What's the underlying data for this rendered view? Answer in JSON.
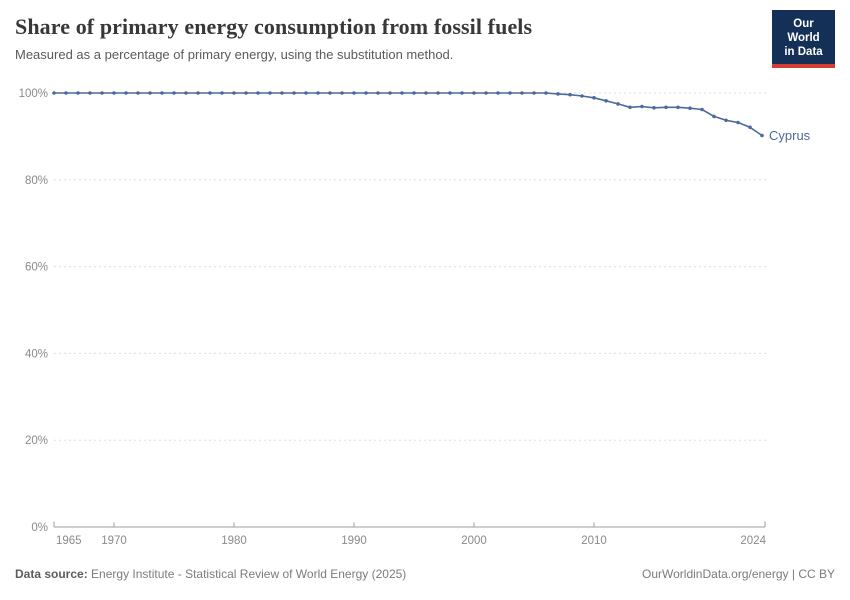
{
  "header": {
    "title": "Share of primary energy consumption from fossil fuels",
    "subtitle": "Measured as a percentage of primary energy, using the substitution method.",
    "logo": {
      "line1": "Our World",
      "line2": "in Data"
    }
  },
  "chart_data": {
    "type": "line",
    "title": "Share of primary energy consumption from fossil fuels",
    "xlabel": "",
    "ylabel": "",
    "xlim": [
      1965,
      2024
    ],
    "ylim": [
      0,
      100
    ],
    "x_ticks": [
      1965,
      1970,
      1980,
      1990,
      2000,
      2010,
      2024
    ],
    "y_ticks": [
      0,
      20,
      40,
      60,
      80,
      100
    ],
    "y_tick_suffix": "%",
    "grid": "horizontal-dashed",
    "legend_position": "end-of-line-label",
    "x": [
      1965,
      1966,
      1967,
      1968,
      1969,
      1970,
      1971,
      1972,
      1973,
      1974,
      1975,
      1976,
      1977,
      1978,
      1979,
      1980,
      1981,
      1982,
      1983,
      1984,
      1985,
      1986,
      1987,
      1988,
      1989,
      1990,
      1991,
      1992,
      1993,
      1994,
      1995,
      1996,
      1997,
      1998,
      1999,
      2000,
      2001,
      2002,
      2003,
      2004,
      2005,
      2006,
      2007,
      2008,
      2009,
      2010,
      2011,
      2012,
      2013,
      2014,
      2015,
      2016,
      2017,
      2018,
      2019,
      2020,
      2021,
      2022,
      2023,
      2024
    ],
    "series": [
      {
        "name": "Cyprus",
        "color": "#4c6a9c",
        "values": [
          100,
          100,
          100,
          100,
          100,
          100,
          100,
          100,
          100,
          100,
          100,
          100,
          100,
          100,
          100,
          100,
          100,
          100,
          100,
          100,
          100,
          100,
          100,
          100,
          100,
          100,
          100,
          100,
          100,
          100,
          100,
          100,
          100,
          100,
          100,
          100,
          100,
          100,
          100,
          100,
          100,
          100,
          99.8,
          99.6,
          99.3,
          98.9,
          98.2,
          97.5,
          96.7,
          96.9,
          96.6,
          96.7,
          96.7,
          96.5,
          96.2,
          94.6,
          93.7,
          93.2,
          92.1,
          90.2
        ]
      }
    ]
  },
  "footer": {
    "datasource_label": "Data source:",
    "datasource": "Energy Institute - Statistical Review of World Energy (2025)",
    "credit": "OurWorldinData.org/energy | CC BY"
  },
  "colors": {
    "series_blue": "#4c6a9c",
    "logo_navy": "#143057",
    "logo_red": "#d43d33",
    "grid_line": "#dedede",
    "axis_line": "#9c9c9c",
    "tick_label": "#8a8a8a"
  }
}
